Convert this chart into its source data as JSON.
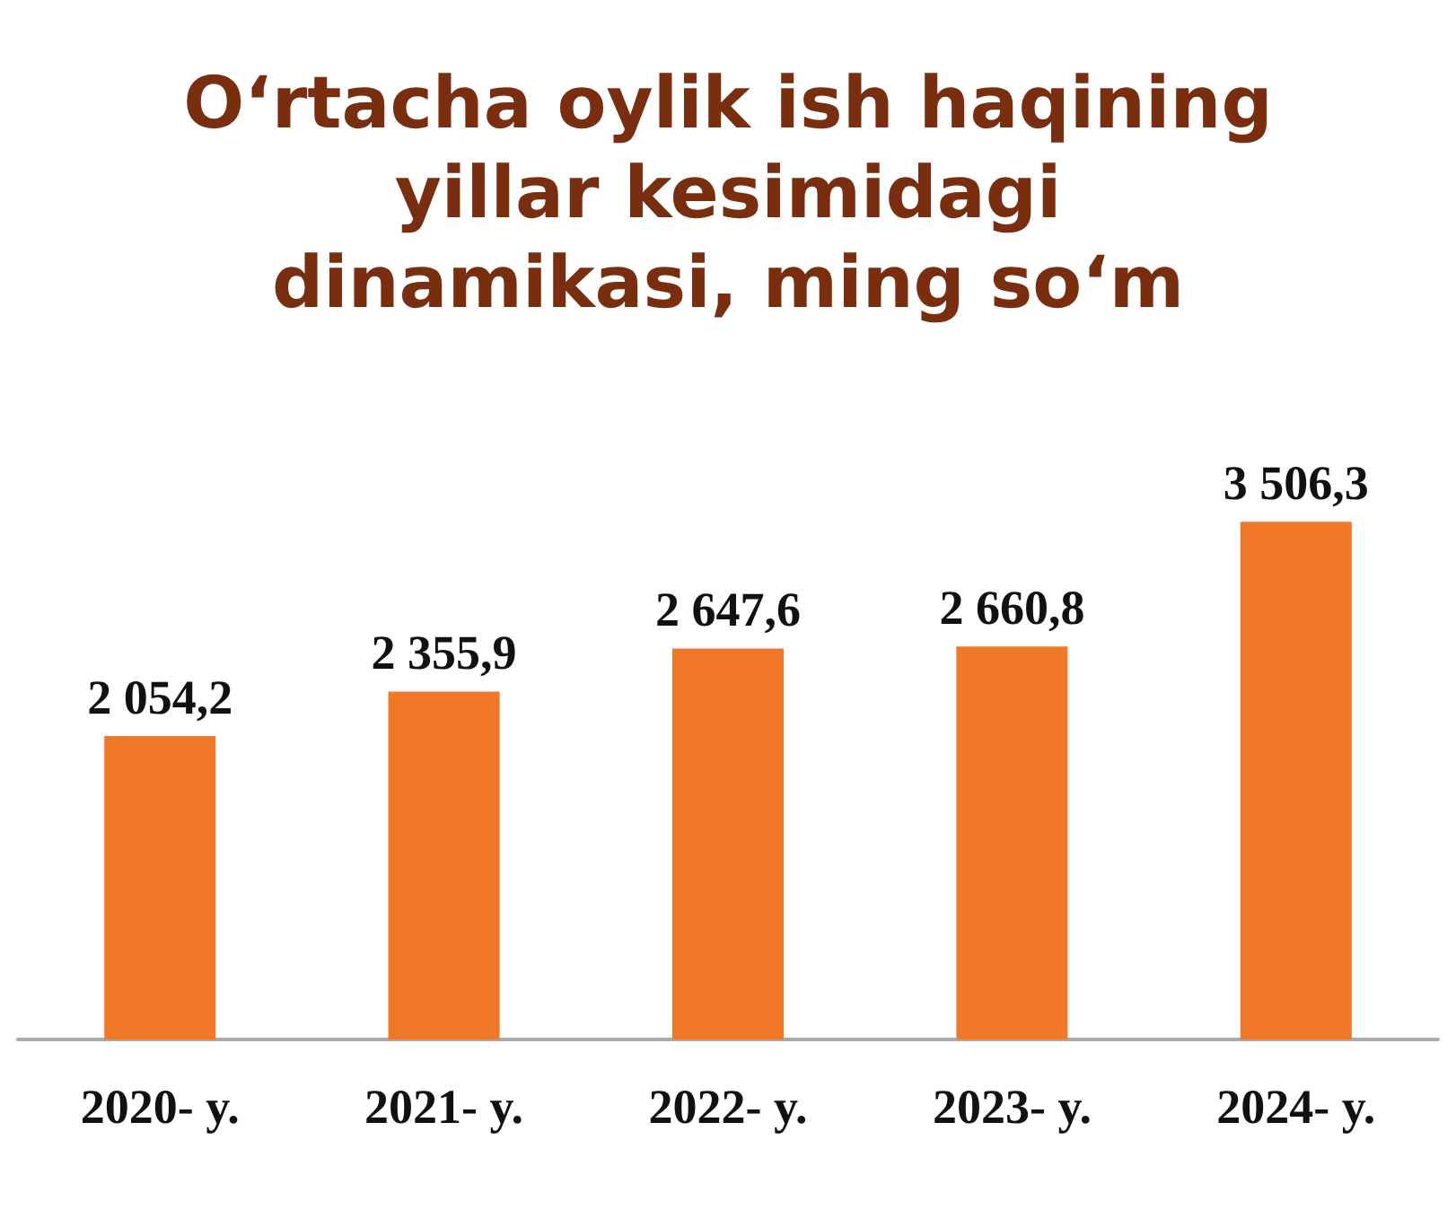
{
  "chart_data": {
    "type": "bar",
    "title": "O‘rtacha oylik ish haqining\nyillar kesimidagi\ndinamikasi, ming so‘m",
    "categories": [
      "2020- y.",
      "2021- y.",
      "2022- y.",
      "2023- y.",
      "2024- y."
    ],
    "values": [
      2054.2,
      2355.9,
      2647.6,
      2660.8,
      3506.3
    ],
    "value_labels": [
      "2 054,2",
      "2 355,9",
      "2 647,6",
      "2 660,8",
      "3 506,3"
    ],
    "color": "#f07828",
    "grid": false
  }
}
